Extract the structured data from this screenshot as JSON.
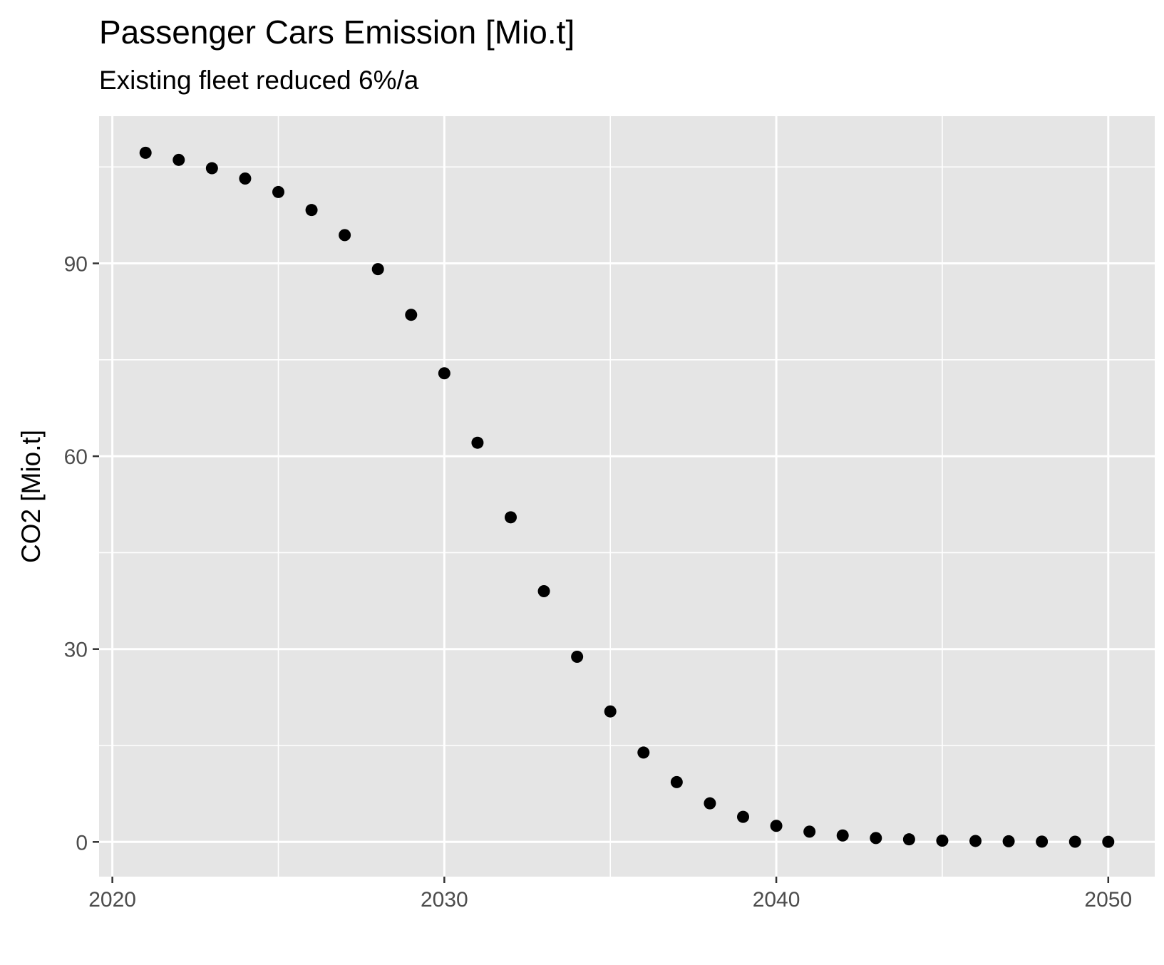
{
  "chart_data": {
    "type": "scatter",
    "title": "Passenger Cars Emission [Mio.t]",
    "subtitle": "Existing fleet reduced 6%/a",
    "xlabel": "",
    "ylabel": "CO2 [Mio.t]",
    "xlim": [
      2019.6,
      2051.4
    ],
    "ylim": [
      -5.4,
      112.9
    ],
    "xticks": [
      "2020",
      "2030",
      "2040",
      "2050"
    ],
    "yticks": [
      "0",
      "30",
      "60",
      "90"
    ],
    "grid": true,
    "legend": "none",
    "x": [
      2021,
      2022,
      2023,
      2024,
      2025,
      2026,
      2027,
      2028,
      2029,
      2030,
      2031,
      2032,
      2033,
      2034,
      2035,
      2036,
      2037,
      2038,
      2039,
      2040,
      2041,
      2042,
      2043,
      2044,
      2045,
      2046,
      2047,
      2048,
      2049,
      2050
    ],
    "y": [
      107.2,
      106.1,
      104.8,
      103.2,
      101.1,
      98.3,
      94.4,
      89.1,
      82.0,
      72.9,
      62.1,
      50.5,
      39.0,
      28.8,
      20.3,
      13.9,
      9.3,
      6.0,
      3.9,
      2.5,
      1.6,
      1.0,
      0.6,
      0.4,
      0.2,
      0.15,
      0.1,
      0.05,
      0.03,
      0.02
    ]
  }
}
